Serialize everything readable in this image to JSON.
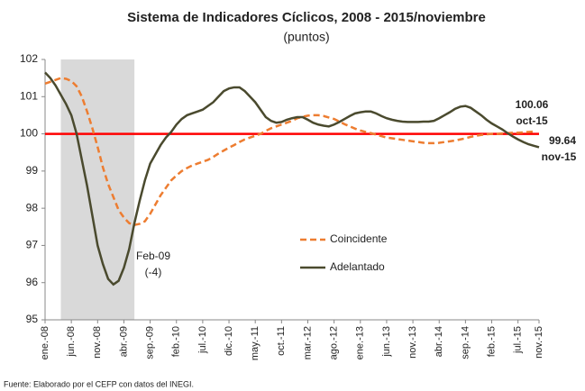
{
  "chart_data": {
    "type": "line",
    "title": "Sistema de Indicadores Cíclicos, 2008 - 2015/noviembre",
    "subtitle": "(puntos)",
    "source": "Fuente: Elaborado por el CEFP con datos del INEGI.",
    "categories": [
      "ene.-08",
      null,
      null,
      null,
      null,
      "jun.-08",
      null,
      null,
      null,
      null,
      "nov.-08",
      null,
      null,
      null,
      null,
      "abr.-09",
      null,
      null,
      null,
      null,
      "sep.-09",
      null,
      null,
      null,
      null,
      "feb.-10",
      null,
      null,
      null,
      null,
      "jul.-10",
      null,
      null,
      null,
      null,
      "dic.-10",
      null,
      null,
      null,
      null,
      "may.-11",
      null,
      null,
      null,
      null,
      "oct.-11",
      null,
      null,
      null,
      null,
      "mar.-12",
      null,
      null,
      null,
      null,
      "ago.-12",
      null,
      null,
      null,
      null,
      "ene.-13",
      null,
      null,
      null,
      null,
      "jun.-13",
      null,
      null,
      null,
      null,
      "nov.-13",
      null,
      null,
      null,
      null,
      "abr.-14",
      null,
      null,
      null,
      null,
      "sep.-14",
      null,
      null,
      null,
      null,
      "feb.-15",
      null,
      null,
      null,
      null,
      "jul.-15",
      null,
      null,
      null,
      "nov.-15"
    ],
    "series": [
      {
        "name": "Coincidente",
        "color": "#ED7D31",
        "dashed": true,
        "values": [
          101.35,
          101.4,
          101.45,
          101.5,
          101.48,
          101.42,
          101.28,
          101.0,
          100.6,
          100.15,
          99.65,
          99.1,
          98.65,
          98.3,
          97.95,
          97.75,
          97.6,
          97.55,
          97.58,
          97.65,
          97.85,
          98.1,
          98.35,
          98.55,
          98.75,
          98.88,
          99.0,
          99.08,
          99.15,
          99.2,
          99.25,
          99.3,
          99.38,
          99.47,
          99.55,
          99.63,
          99.7,
          99.78,
          99.85,
          99.9,
          99.95,
          100.0,
          100.08,
          100.15,
          100.2,
          100.25,
          100.3,
          100.35,
          100.42,
          100.46,
          100.49,
          100.5,
          100.5,
          100.48,
          100.44,
          100.4,
          100.33,
          100.26,
          100.2,
          100.14,
          100.09,
          100.05,
          100.02,
          99.98,
          99.94,
          99.9,
          99.88,
          99.86,
          99.84,
          99.82,
          99.8,
          99.78,
          99.76,
          99.75,
          99.75,
          99.76,
          99.78,
          99.8,
          99.82,
          99.85,
          99.88,
          99.92,
          99.95,
          99.97,
          99.99,
          100.0,
          100.0,
          100.01,
          100.02,
          100.03,
          100.03,
          100.04,
          100.05,
          100.06,
          null
        ]
      },
      {
        "name": "Adelantado",
        "color": "#4A4A2E",
        "dashed": false,
        "values": [
          101.65,
          101.5,
          101.3,
          101.05,
          100.8,
          100.5,
          100.0,
          99.3,
          98.6,
          97.8,
          97.0,
          96.5,
          96.1,
          95.95,
          96.05,
          96.4,
          96.9,
          97.6,
          98.2,
          98.75,
          99.2,
          99.45,
          99.7,
          99.9,
          100.05,
          100.25,
          100.4,
          100.5,
          100.55,
          100.6,
          100.65,
          100.75,
          100.85,
          101.0,
          101.15,
          101.22,
          101.25,
          101.25,
          101.15,
          101.0,
          100.85,
          100.65,
          100.45,
          100.35,
          100.3,
          100.32,
          100.38,
          100.42,
          100.45,
          100.45,
          100.38,
          100.3,
          100.25,
          100.22,
          100.2,
          100.25,
          100.32,
          100.4,
          100.48,
          100.55,
          100.58,
          100.6,
          100.6,
          100.55,
          100.48,
          100.42,
          100.38,
          100.35,
          100.33,
          100.32,
          100.32,
          100.32,
          100.33,
          100.33,
          100.35,
          100.42,
          100.5,
          100.58,
          100.67,
          100.73,
          100.75,
          100.7,
          100.6,
          100.5,
          100.38,
          100.28,
          100.2,
          100.12,
          100.02,
          99.93,
          99.85,
          99.78,
          99.72,
          99.68,
          99.64
        ]
      }
    ],
    "ylim": [
      95,
      102
    ],
    "yticks": [
      95,
      96,
      97,
      98,
      99,
      100,
      101,
      102
    ],
    "grid": false,
    "reference_line": {
      "value": 100,
      "color": "#FF0000"
    },
    "shaded_range": [
      3,
      17
    ],
    "annotations": [
      "Feb-09",
      "(-4)",
      "oct-15",
      "nov-15"
    ]
  }
}
